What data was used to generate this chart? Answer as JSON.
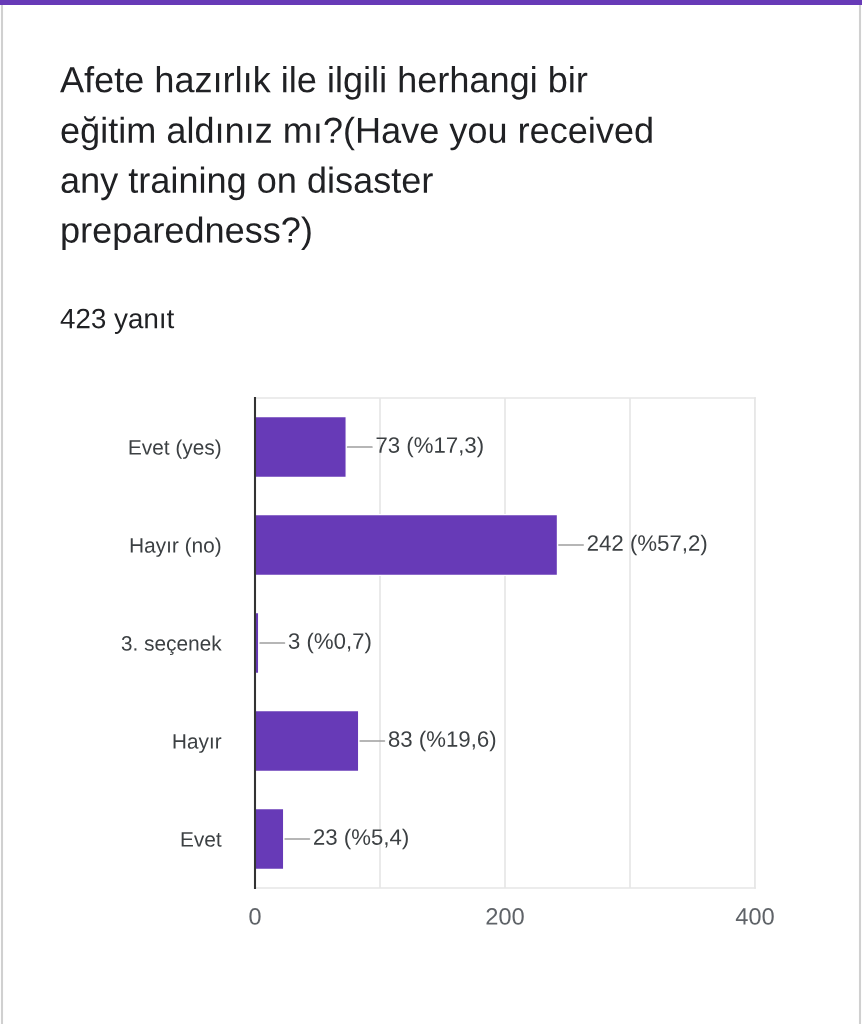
{
  "chart_data": {
    "type": "bar",
    "orientation": "horizontal",
    "title": "Afete hazırlık ile ilgili herhangi bir eğitim aldınız mı?(Have you received any training on disaster preparedness?)",
    "subtitle": "423 yanıt",
    "categories": [
      "Evet (yes)",
      "Hayır (no)",
      "3. seçenek",
      "Hayır",
      "Evet"
    ],
    "values": [
      73,
      242,
      3,
      83,
      23
    ],
    "value_labels": [
      "73 (%17,3)",
      "242 (%57,2)",
      "3 (%0,7)",
      "83 (%19,6)",
      "23 (%5,4)"
    ],
    "color": "#673ab7",
    "xlim": [
      0,
      400
    ],
    "xticks": [
      0,
      {
        "value": 100,
        "label": null
      },
      200,
      {
        "value": 300,
        "label": null
      },
      400
    ],
    "grid": "x"
  }
}
